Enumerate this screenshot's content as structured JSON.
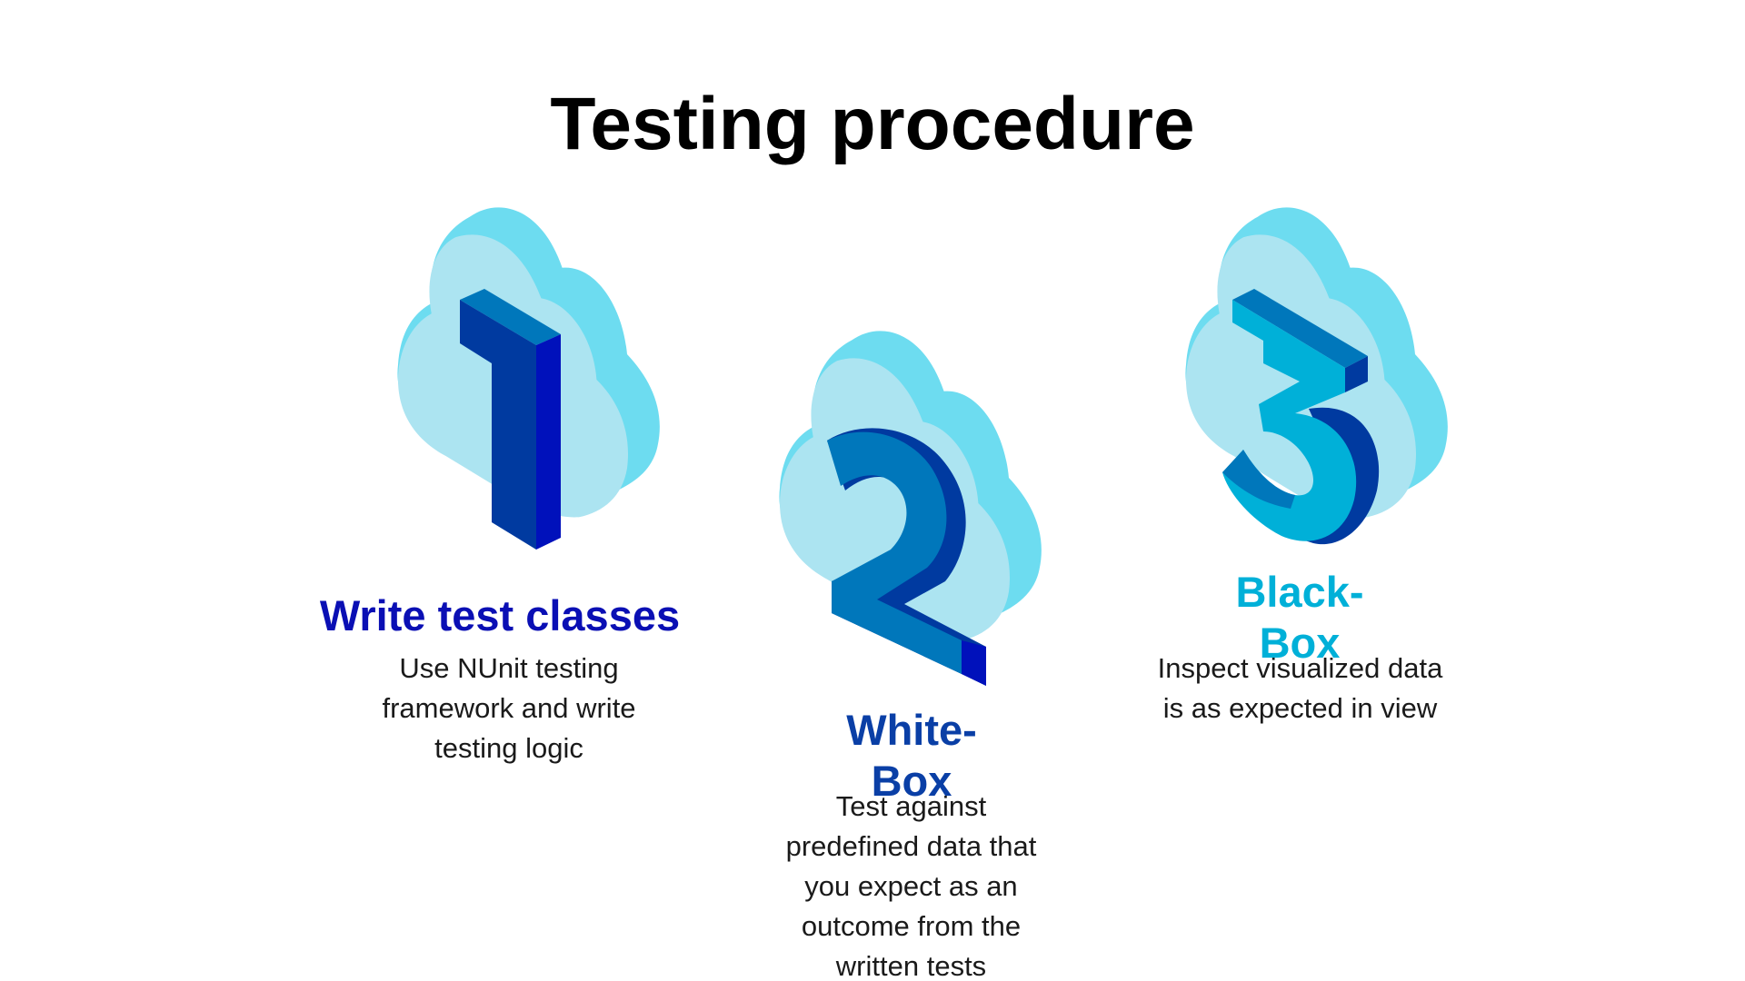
{
  "slide": {
    "title": "Testing procedure",
    "steps": [
      {
        "number_icon": "number-one-icon",
        "heading": "Write test classes",
        "body": "Use NUnit testing framework and write testing logic",
        "color": "#0a0fb4"
      },
      {
        "number_icon": "number-two-icon",
        "heading": "White-Box",
        "body": "Test against predefined data that you expect as an outcome from the written tests",
        "color": "#0a3fa6"
      },
      {
        "number_icon": "number-three-icon",
        "heading": "Black-Box",
        "body": "Inspect visualized data is as expected in view",
        "color": "#00b0d8"
      }
    ]
  },
  "colors": {
    "cloud_light": "#ace4f1",
    "cloud_dark": "#6ddcf0"
  }
}
